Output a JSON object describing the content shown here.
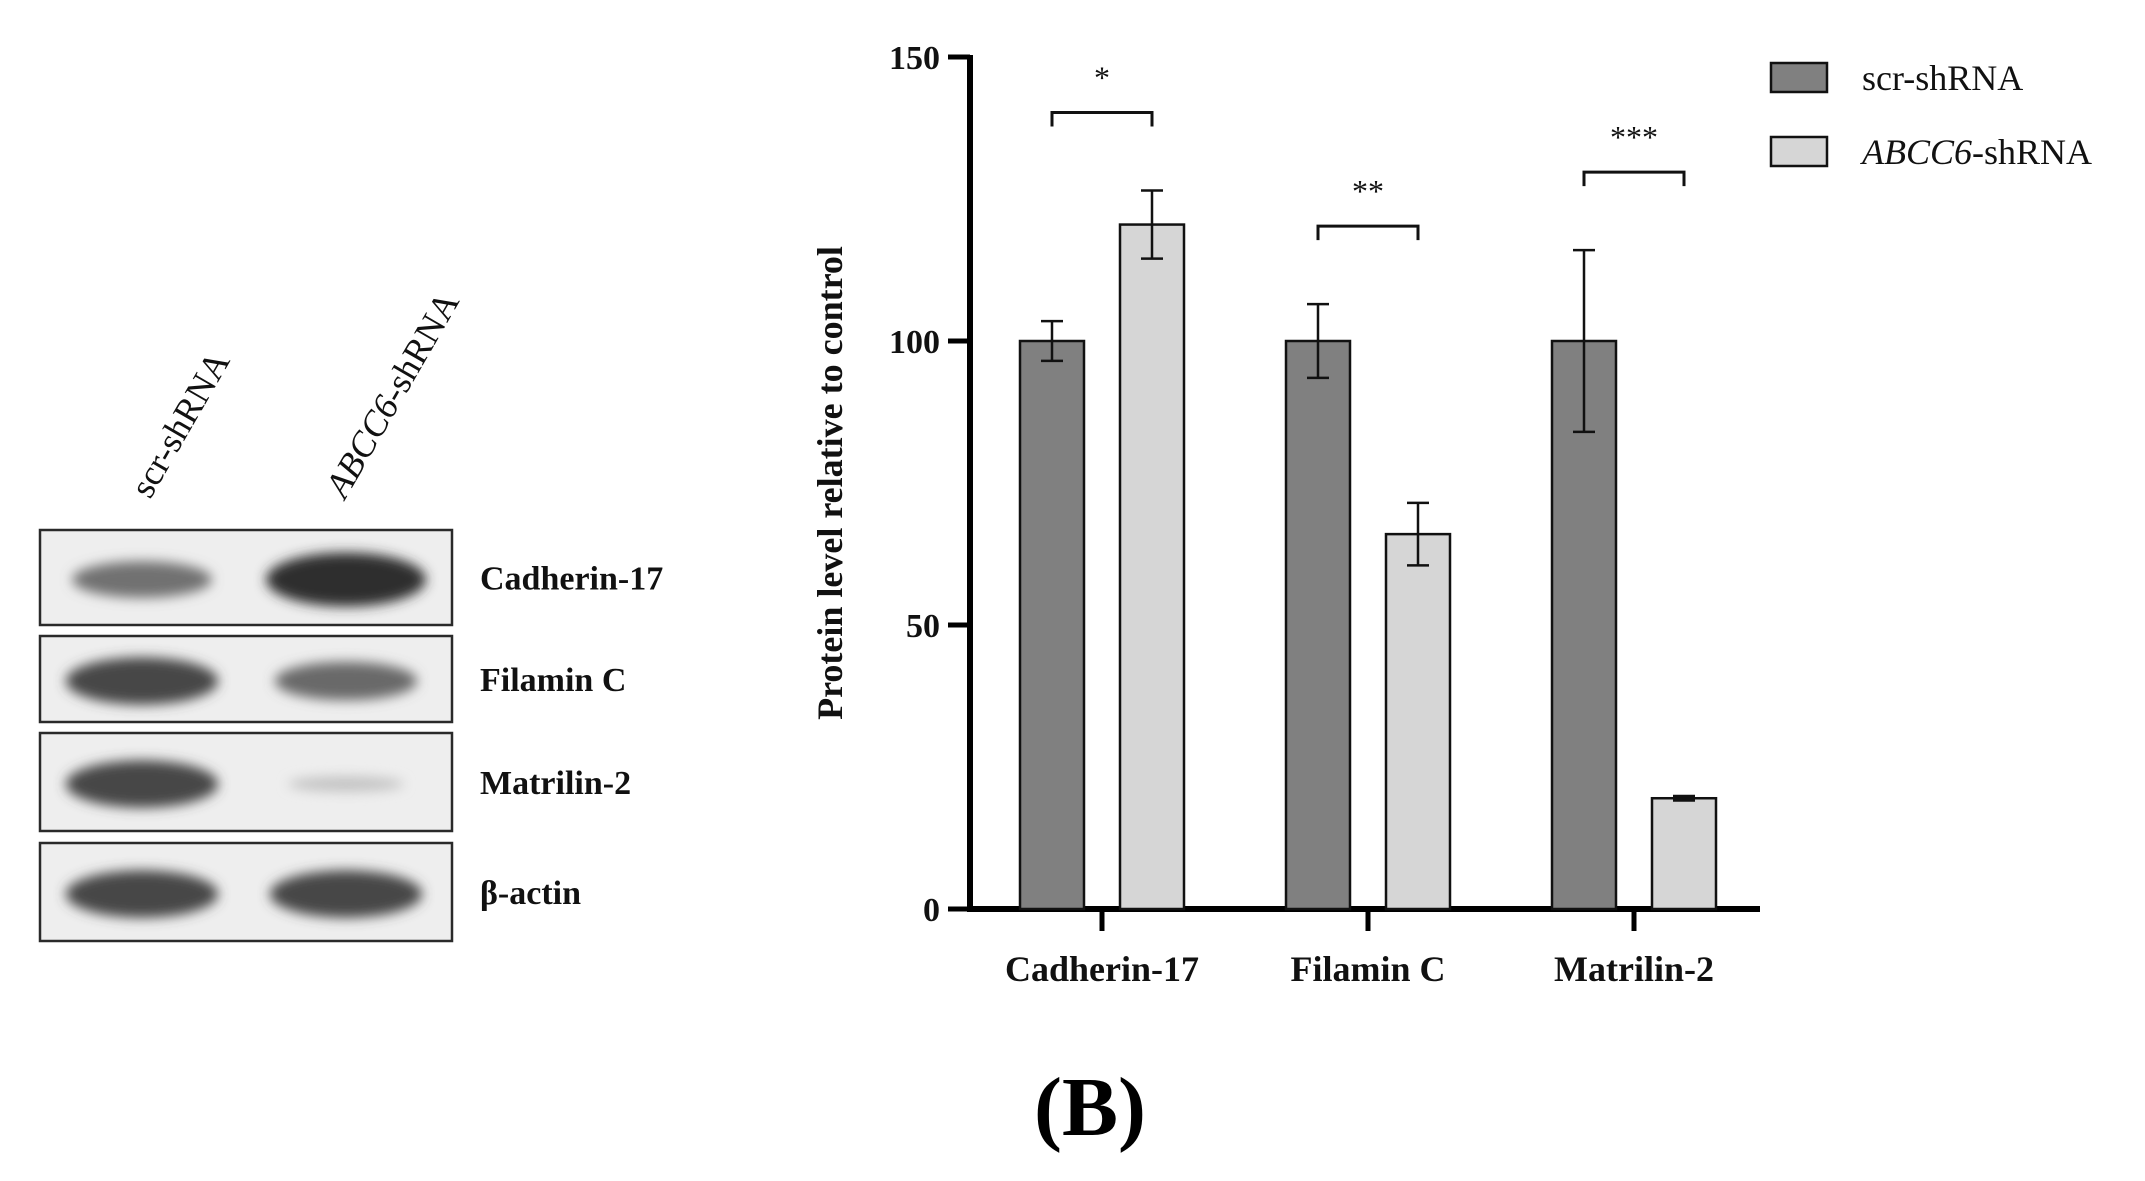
{
  "blot": {
    "lane_labels": [
      {
        "prefix": "",
        "italic": "",
        "rest": "scr-shRNA"
      },
      {
        "prefix": "",
        "italic": "ABCC6",
        "rest": "-shRNA"
      }
    ],
    "bands": [
      {
        "label": "Cadherin-17",
        "intensity": [
          0.6,
          1.0
        ]
      },
      {
        "label": "Filamin C",
        "intensity": [
          0.85,
          0.65
        ]
      },
      {
        "label": "Matrilin-2",
        "intensity": [
          0.85,
          0.12
        ]
      },
      {
        "label": "β-actin",
        "intensity": [
          0.85,
          0.85
        ]
      }
    ]
  },
  "chart_data": {
    "type": "bar",
    "title": "",
    "xlabel": "",
    "ylabel": "Protein level relative to control",
    "ylim": [
      0,
      150
    ],
    "yticks": [
      0,
      50,
      100,
      150
    ],
    "categories": [
      "Cadherin-17",
      "Filamin C",
      "Matrilin-2"
    ],
    "series": [
      {
        "name": "scr-shRNA",
        "legend_italic": "",
        "legend_rest": "scr-shRNA",
        "color": "#808080",
        "values": [
          100,
          100,
          100
        ],
        "errors": [
          3.5,
          6.5,
          16
        ]
      },
      {
        "name": "ABCC6-shRNA",
        "legend_italic": "ABCC6",
        "legend_rest": "-shRNA",
        "color": "#d6d6d6",
        "values": [
          120.5,
          66,
          19.5
        ],
        "errors": [
          6,
          5.5,
          0.4
        ]
      }
    ],
    "significance": [
      "*",
      "**",
      "***"
    ],
    "legend_position": "top-right"
  },
  "panel_label": "(B)"
}
